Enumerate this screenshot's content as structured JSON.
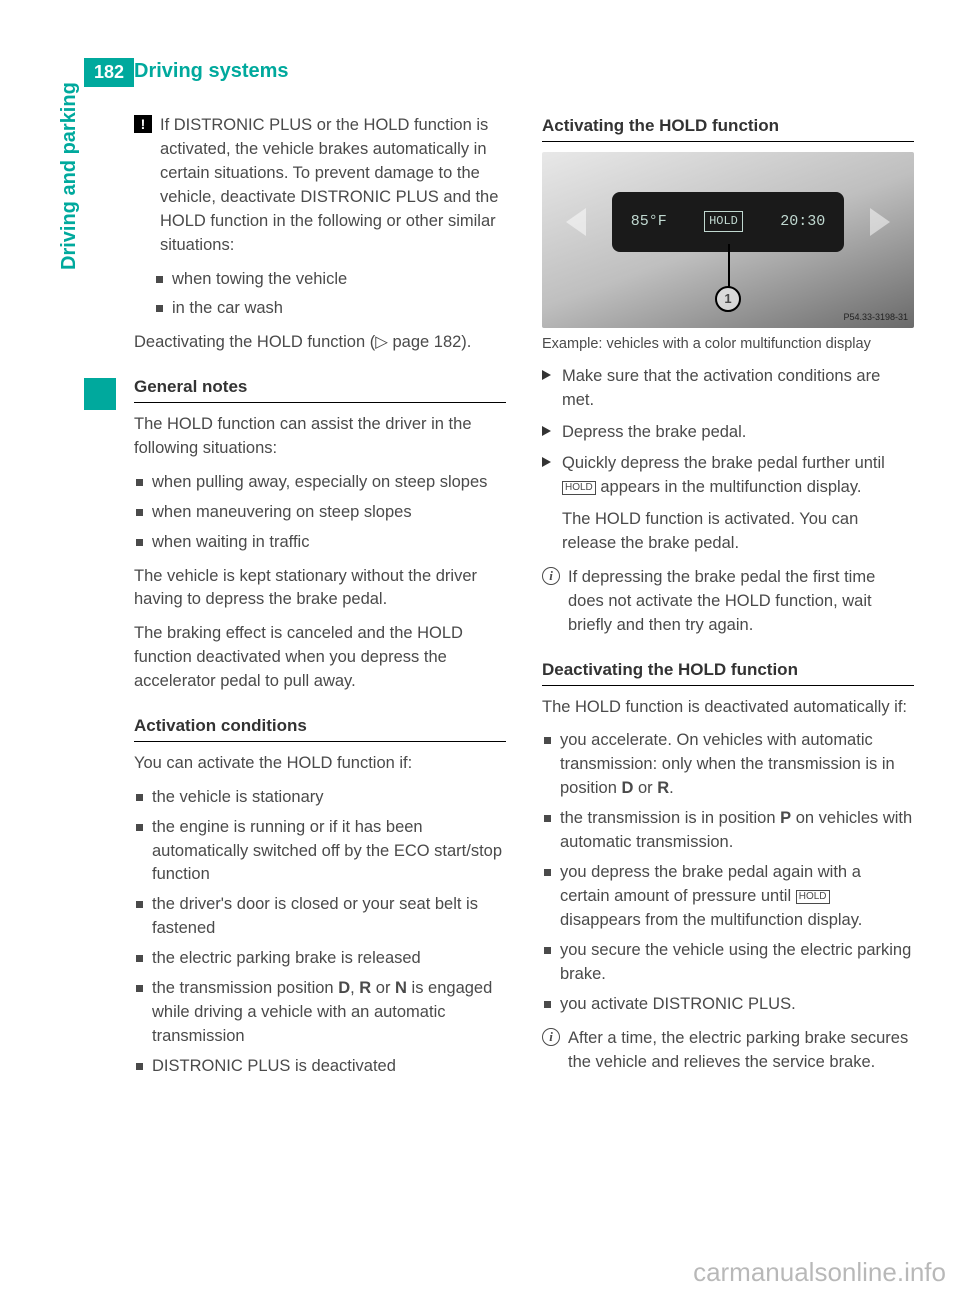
{
  "page_number": "182",
  "header": "Driving systems",
  "side_tab": "Driving and parking",
  "colors": {
    "accent": "#00a99d",
    "text": "#4a4a4a",
    "heading": "#333333"
  },
  "left": {
    "warn": "If DISTRONIC PLUS or the HOLD function is activated, the vehicle brakes automatically in certain situations. To prevent damage to the vehicle, deactivate DISTRONIC PLUS and the HOLD function in the following or other similar situations:",
    "warn_list": [
      "when towing the vehicle",
      "in the car wash"
    ],
    "warn_after": "Deactivating the HOLD function (▷ page 182).",
    "h1": "General notes",
    "p1": "The HOLD function can assist the driver in the following situations:",
    "list1": [
      "when pulling away, especially on steep slopes",
      "when maneuvering on steep slopes",
      "when waiting in traffic"
    ],
    "p2": "The vehicle is kept stationary without the driver having to depress the brake pedal.",
    "p3": "The braking effect is canceled and the HOLD function deactivated when you depress the accelerator pedal to pull away.",
    "h2": "Activation conditions",
    "p4": "You can activate the HOLD function if:",
    "list2": [
      "the vehicle is stationary",
      "the engine is running or if it has been automatically switched off by the ECO start/stop function",
      "the driver's door is closed or your seat belt is fastened",
      "the electric parking brake is released",
      "the transmission position D, R or N is engaged while driving a vehicle with an automatic transmission",
      "DISTRONIC PLUS is deactivated"
    ]
  },
  "right": {
    "h1": "Activating the HOLD function",
    "display": {
      "temp": "85°F",
      "hold": "HOLD",
      "time": "20:30",
      "marker": "1",
      "code": "P54.33-3198-31"
    },
    "caption": "Example: vehicles with a color multifunction display",
    "steps": [
      "Make sure that the activation conditions are met.",
      "Depress the brake pedal.",
      "Quickly depress the brake pedal further until HOLD appears in the multifunction display."
    ],
    "step3_cont": "The HOLD function is activated. You can release the brake pedal.",
    "info1": "If depressing the brake pedal the first time does not activate the HOLD function, wait briefly and then try again.",
    "h2": "Deactivating the HOLD function",
    "p1": "The HOLD function is deactivated automatically if:",
    "list1": [
      "you accelerate. On vehicles with automatic transmission: only when the transmission is in position D or R.",
      "the transmission is in position P on vehicles with automatic transmission.",
      "you depress the brake pedal again with a certain amount of pressure until HOLD disappears from the multifunction display.",
      "you secure the vehicle using the electric parking brake.",
      "you activate DISTRONIC PLUS."
    ],
    "info2": "After a time, the electric parking brake secures the vehicle and relieves the service brake."
  },
  "watermark": "carmanualsonline.info"
}
